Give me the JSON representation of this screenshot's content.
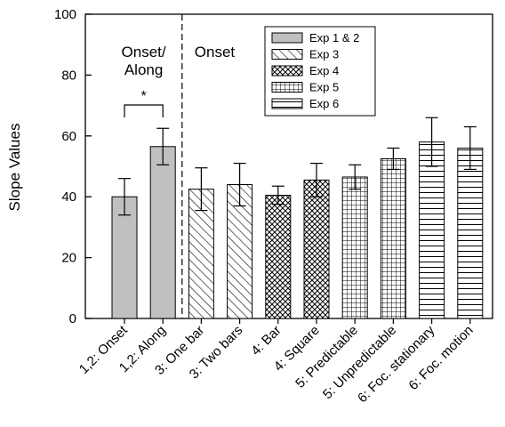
{
  "chart_data": {
    "type": "bar",
    "ylabel": "Slope Values",
    "ylim": [
      0,
      100
    ],
    "yticks": [
      0,
      20,
      40,
      60,
      80,
      100
    ],
    "grid": false,
    "legend_placement": "top-right",
    "categories": [
      "1,2: Onset",
      "1,2: Along",
      "3: One bar",
      "3: Two bars",
      "4: Bar",
      "4: Square",
      "5: Predictable",
      "5: Unpredictable",
      "6: Foc. stationary",
      "6: Foc. motion"
    ],
    "values": [
      40,
      56.5,
      42.5,
      44,
      40.5,
      45.5,
      46.5,
      52.5,
      58,
      56
    ],
    "errors": [
      6,
      6,
      7,
      7,
      3,
      5.5,
      4,
      3.5,
      8,
      7
    ],
    "series_of_bar": [
      0,
      0,
      1,
      1,
      2,
      2,
      3,
      3,
      4,
      4
    ],
    "legend": [
      {
        "name": "Exp 1 & 2",
        "pattern": "solid-gray"
      },
      {
        "name": "Exp 3",
        "pattern": "diagonal-hatch"
      },
      {
        "name": "Exp 4",
        "pattern": "crosshatch"
      },
      {
        "name": "Exp 5",
        "pattern": "grid"
      },
      {
        "name": "Exp 6",
        "pattern": "horizontal-lines"
      }
    ],
    "region_labels": {
      "left": "Onset/\nAlong",
      "right": "Onset"
    },
    "significance": {
      "bars": [
        0,
        1
      ],
      "label": "*"
    },
    "colors": {
      "bar_fill": "#c0c0c0",
      "stroke": "#000000",
      "background": "#ffffff"
    }
  }
}
